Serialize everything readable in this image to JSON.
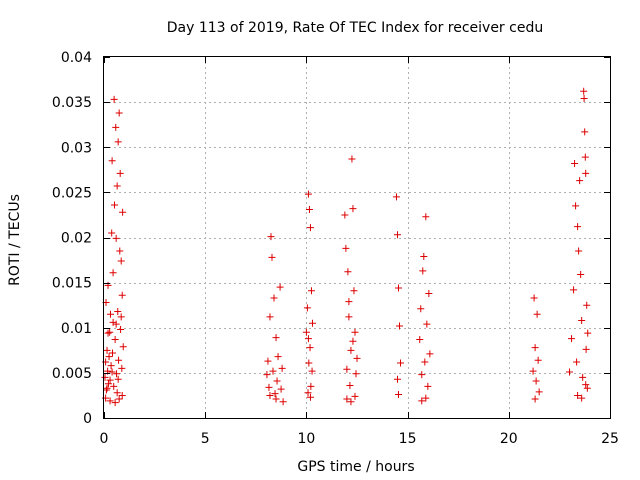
{
  "chart_data": {
    "type": "scatter",
    "title": "Day 113 of 2019, Rate Of TEC Index for receiver cedu",
    "xlabel": "GPS time / hours",
    "ylabel": "ROTI / TECUs",
    "xlim": [
      0,
      25
    ],
    "ylim": [
      0,
      0.04
    ],
    "xticks": [
      0,
      5,
      10,
      15,
      20,
      25
    ],
    "xtick_labels": [
      "0",
      "5",
      "10",
      "15",
      "20",
      "25"
    ],
    "yticks": [
      0,
      0.005,
      0.01,
      0.015,
      0.02,
      0.025,
      0.03,
      0.035,
      0.04
    ],
    "ytick_labels": [
      "0",
      "0.005",
      "0.01",
      "0.015",
      "0.02",
      "0.025",
      "0.03",
      "0.035",
      "0.04"
    ],
    "grid": true,
    "marker": "+",
    "color": "#dd0000",
    "series": [
      {
        "name": "ROTI",
        "points": [
          [
            0.05,
            0.0045
          ],
          [
            0.08,
            0.0062
          ],
          [
            0.1,
            0.0128
          ],
          [
            0.12,
            0.0031
          ],
          [
            0.15,
            0.0075
          ],
          [
            0.18,
            0.0052
          ],
          [
            0.2,
            0.0147
          ],
          [
            0.22,
            0.0038
          ],
          [
            0.25,
            0.0068
          ],
          [
            0.28,
            0.0095
          ],
          [
            0.3,
            0.0042
          ],
          [
            0.32,
            0.0115
          ],
          [
            0.35,
            0.0058
          ],
          [
            0.38,
            0.0205
          ],
          [
            0.4,
            0.0285
          ],
          [
            0.42,
            0.0072
          ],
          [
            0.45,
            0.0161
          ],
          [
            0.48,
            0.0035
          ],
          [
            0.5,
            0.0353
          ],
          [
            0.52,
            0.0236
          ],
          [
            0.55,
            0.0087
          ],
          [
            0.58,
            0.0322
          ],
          [
            0.6,
            0.0199
          ],
          [
            0.62,
            0.0049
          ],
          [
            0.65,
            0.0257
          ],
          [
            0.68,
            0.0118
          ],
          [
            0.7,
            0.0306
          ],
          [
            0.72,
            0.0064
          ],
          [
            0.75,
            0.0338
          ],
          [
            0.78,
            0.0185
          ],
          [
            0.8,
            0.0271
          ],
          [
            0.82,
            0.0098
          ],
          [
            0.85,
            0.0174
          ],
          [
            0.88,
            0.0055
          ],
          [
            0.9,
            0.0136
          ],
          [
            0.92,
            0.0228
          ],
          [
            0.95,
            0.0079
          ],
          [
            0.08,
            0.0022
          ],
          [
            0.3,
            0.0019
          ],
          [
            0.55,
            0.0017
          ],
          [
            0.75,
            0.0021
          ],
          [
            0.9,
            0.0025
          ],
          [
            0.2,
            0.0094
          ],
          [
            0.6,
            0.0104
          ],
          [
            0.85,
            0.0112
          ],
          [
            0.4,
            0.0051
          ],
          [
            0.7,
            0.0043
          ],
          [
            0.15,
            0.0033
          ],
          [
            0.65,
            0.0028
          ],
          [
            0.45,
            0.0106
          ],
          [
            8.05,
            0.0048
          ],
          [
            8.1,
            0.0063
          ],
          [
            8.15,
            0.0034
          ],
          [
            8.2,
            0.0112
          ],
          [
            8.25,
            0.0201
          ],
          [
            8.3,
            0.0178
          ],
          [
            8.35,
            0.0052
          ],
          [
            8.4,
            0.0133
          ],
          [
            8.45,
            0.0027
          ],
          [
            8.5,
            0.0089
          ],
          [
            8.55,
            0.0041
          ],
          [
            8.6,
            0.0068
          ],
          [
            8.7,
            0.0145
          ],
          [
            8.75,
            0.0032
          ],
          [
            8.8,
            0.0055
          ],
          [
            8.85,
            0.0018
          ],
          [
            8.2,
            0.0025
          ],
          [
            8.5,
            0.0021
          ],
          [
            10.0,
            0.0095
          ],
          [
            10.05,
            0.0122
          ],
          [
            10.1,
            0.0248
          ],
          [
            10.12,
            0.0061
          ],
          [
            10.15,
            0.0231
          ],
          [
            10.18,
            0.0078
          ],
          [
            10.2,
            0.0211
          ],
          [
            10.22,
            0.0035
          ],
          [
            10.25,
            0.0141
          ],
          [
            10.28,
            0.0052
          ],
          [
            10.3,
            0.0105
          ],
          [
            10.08,
            0.0028
          ],
          [
            10.2,
            0.0023
          ],
          [
            10.1,
            0.0088
          ],
          [
            11.9,
            0.0225
          ],
          [
            11.95,
            0.0188
          ],
          [
            12.0,
            0.0054
          ],
          [
            12.05,
            0.0162
          ],
          [
            12.1,
            0.0112
          ],
          [
            12.15,
            0.0036
          ],
          [
            12.2,
            0.0075
          ],
          [
            12.25,
            0.0287
          ],
          [
            12.3,
            0.0232
          ],
          [
            12.35,
            0.0141
          ],
          [
            12.4,
            0.0095
          ],
          [
            12.45,
            0.0049
          ],
          [
            12.5,
            0.0066
          ],
          [
            12.0,
            0.0021
          ],
          [
            12.2,
            0.0018
          ],
          [
            12.4,
            0.0024
          ],
          [
            12.1,
            0.0129
          ],
          [
            12.3,
            0.0085
          ],
          [
            14.45,
            0.0245
          ],
          [
            14.5,
            0.0203
          ],
          [
            14.55,
            0.0144
          ],
          [
            14.6,
            0.0102
          ],
          [
            14.65,
            0.0061
          ],
          [
            14.5,
            0.0043
          ],
          [
            14.55,
            0.0026
          ],
          [
            15.6,
            0.0087
          ],
          [
            15.65,
            0.0121
          ],
          [
            15.7,
            0.0048
          ],
          [
            15.75,
            0.0163
          ],
          [
            15.8,
            0.0179
          ],
          [
            15.85,
            0.0062
          ],
          [
            15.9,
            0.0223
          ],
          [
            15.95,
            0.0104
          ],
          [
            16.0,
            0.0035
          ],
          [
            16.05,
            0.0138
          ],
          [
            16.1,
            0.0071
          ],
          [
            15.7,
            0.0019
          ],
          [
            15.9,
            0.0022
          ],
          [
            21.2,
            0.0052
          ],
          [
            21.25,
            0.0133
          ],
          [
            21.3,
            0.0078
          ],
          [
            21.35,
            0.0041
          ],
          [
            21.4,
            0.0115
          ],
          [
            21.45,
            0.0064
          ],
          [
            21.5,
            0.0029
          ],
          [
            21.3,
            0.0021
          ],
          [
            23.0,
            0.0051
          ],
          [
            23.1,
            0.0088
          ],
          [
            23.2,
            0.0142
          ],
          [
            23.25,
            0.0282
          ],
          [
            23.3,
            0.0235
          ],
          [
            23.35,
            0.0062
          ],
          [
            23.4,
            0.0212
          ],
          [
            23.45,
            0.0185
          ],
          [
            23.5,
            0.0263
          ],
          [
            23.55,
            0.0159
          ],
          [
            23.6,
            0.0108
          ],
          [
            23.65,
            0.0045
          ],
          [
            23.7,
            0.0362
          ],
          [
            23.72,
            0.0354
          ],
          [
            23.75,
            0.0317
          ],
          [
            23.78,
            0.0289
          ],
          [
            23.8,
            0.0271
          ],
          [
            23.82,
            0.0076
          ],
          [
            23.85,
            0.0125
          ],
          [
            23.88,
            0.0033
          ],
          [
            23.9,
            0.0094
          ],
          [
            23.4,
            0.0025
          ],
          [
            23.6,
            0.0022
          ],
          [
            23.8,
            0.0037
          ]
        ]
      }
    ]
  }
}
